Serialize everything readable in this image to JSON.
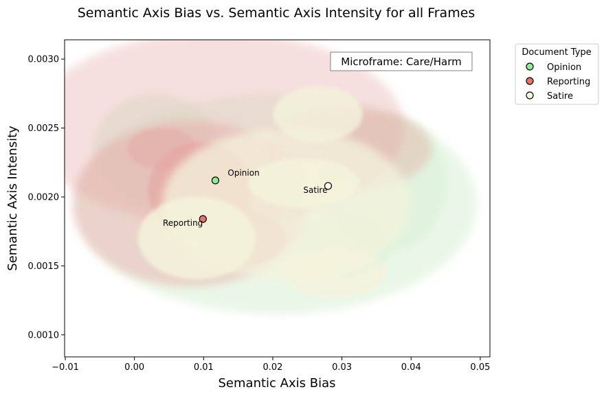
{
  "chart_data": {
    "type": "scatter",
    "title": "Semantic Axis Bias vs. Semantic Axis Intensity for all Frames",
    "xlabel": "Semantic Axis Bias",
    "ylabel": "Semantic Axis Intensity",
    "xlim": [
      -0.0101,
      0.0514
    ],
    "ylim": [
      0.00084,
      0.00314
    ],
    "xticks": [
      -0.01,
      0.0,
      0.01,
      0.02,
      0.03,
      0.04,
      0.05
    ],
    "xtick_labels": [
      "−0.01",
      "0.00",
      "0.01",
      "0.02",
      "0.03",
      "0.04",
      "0.05"
    ],
    "yticks": [
      0.001,
      0.0015,
      0.002,
      0.0025,
      0.003
    ],
    "ytick_labels": [
      "0.0010",
      "0.0015",
      "0.0020",
      "0.0025",
      "0.0030"
    ],
    "grid": false,
    "annotation_box": "Microframe: Care/Harm",
    "legend": {
      "title": "Document Type",
      "placement": "outside-upper-right",
      "entries": [
        "Opinion",
        "Reporting",
        "Satire"
      ]
    },
    "series": [
      {
        "name": "Opinion",
        "color": "#90ee90",
        "x": 0.0117,
        "y": 0.00212,
        "label": "Opinion"
      },
      {
        "name": "Reporting",
        "color": "#e9736b",
        "x": 0.0099,
        "y": 0.00184,
        "label": "Reporting"
      },
      {
        "name": "Satire",
        "color": "#fffde8",
        "x": 0.028,
        "y": 0.00208,
        "label": "Satire"
      }
    ],
    "density_colors": {
      "Opinion": "#d8f0d5",
      "Reporting": "#e6a7a4",
      "Satire": "#f4f3dc"
    }
  }
}
